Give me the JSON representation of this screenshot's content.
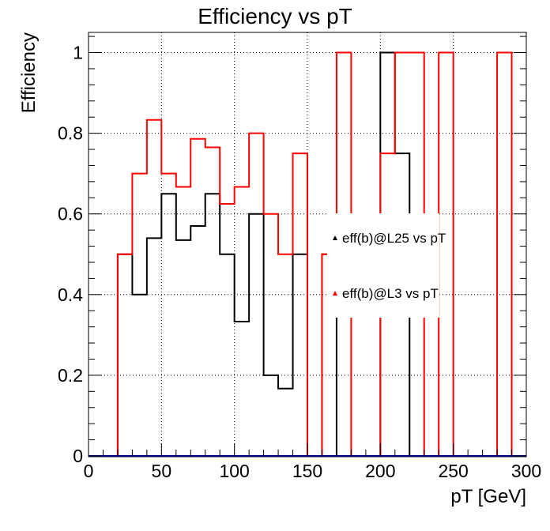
{
  "chart_data": {
    "type": "step",
    "title": "Efficiency vs pT",
    "xlabel": "pT [GeV]",
    "ylabel": "Efficiency",
    "xlim": [
      0,
      300
    ],
    "ylim": [
      0,
      1.05
    ],
    "grid": true,
    "legend_position": "center-right",
    "x_ticks": [
      "0",
      "50",
      "100",
      "150",
      "200",
      "250",
      "300"
    ],
    "y_ticks": [
      "0",
      "0.2",
      "0.4",
      "0.6",
      "0.8",
      "1"
    ],
    "bin_edges": [
      0,
      10,
      20,
      30,
      40,
      50,
      60,
      70,
      80,
      90,
      100,
      110,
      120,
      130,
      140,
      150,
      160,
      170,
      180,
      190,
      200,
      210,
      220,
      230,
      240,
      250,
      260,
      270,
      280,
      290,
      300
    ],
    "series": [
      {
        "name": "eff(b)@L25 vs pT",
        "color": "#000000",
        "values": [
          0,
          0,
          0.5,
          0.4,
          0.54,
          0.65,
          0.535,
          0.57,
          0.65,
          0.5,
          0.333,
          0.6,
          0.2,
          0.167,
          0.5,
          0,
          0.5,
          0,
          0,
          0,
          1,
          0.75,
          0,
          0,
          0,
          0,
          0,
          0,
          0,
          0
        ]
      },
      {
        "name": "eff(b)@L3 vs pT",
        "color": "#ff0000",
        "values": [
          0,
          0,
          0.5,
          0.7,
          0.833,
          0.7,
          0.667,
          0.786,
          0.765,
          0.625,
          0.667,
          0.8,
          0.6,
          0.5,
          0.75,
          0,
          0.5,
          1,
          0,
          0,
          0.75,
          1,
          1,
          0,
          1,
          0,
          0,
          0,
          1,
          0
        ]
      }
    ]
  }
}
